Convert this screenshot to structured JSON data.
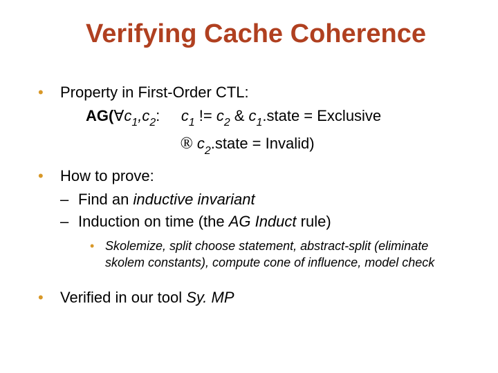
{
  "title_color": "#b04020",
  "bullet_color": "#d89828",
  "text_color": "#000000",
  "title": "Verifying Cache Coherence",
  "b1": "Property in First-Order CTL:",
  "formula_prefix": "AG(",
  "forall": "∀",
  "c": "c",
  "sub1": "1",
  "comma": ",",
  "sub2": "2",
  "colon": ":",
  "neq": " != ",
  "amp_l": "  & ",
  "dot": ".",
  "state_eq_excl": "state = Exclusive",
  "implies": "®",
  "state_eq_inv": "state = Invalid)",
  "b2": "How to prove:",
  "b2a_pre": "Find an ",
  "b2a_ital": "inductive invariant",
  "b2b_pre": "Induction on time (the ",
  "b2b_ital": "AG Induct",
  "b2b_post": " rule)",
  "b2b1_a": "Skolemize, split ",
  "b2b1_b": "choose",
  "b2b1_c": " statement, abstract-split (eliminate skolem constants), compute cone of influence, model check",
  "b3_pre": "Verified in our tool ",
  "b3_ital": "Sy. MP"
}
